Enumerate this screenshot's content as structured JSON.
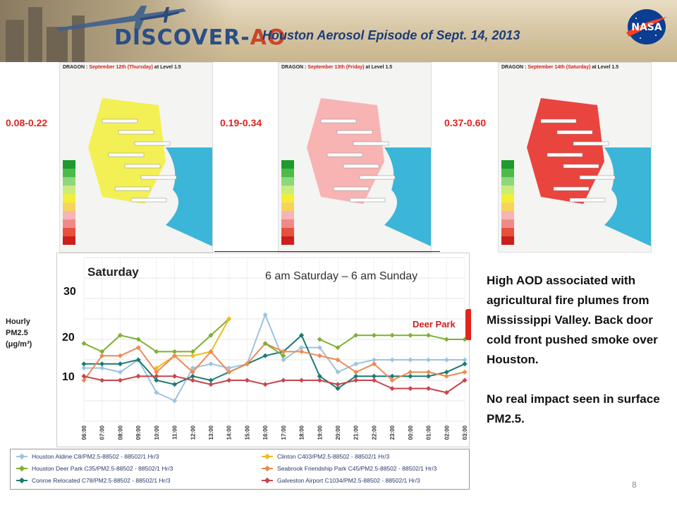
{
  "header": {
    "logo_main": "DISCOVER-",
    "logo_accent": "AO",
    "title": "Houston Aerosol Episode of Sept. 14, 2013",
    "nasa_label": "NASA"
  },
  "maps": [
    {
      "title_prefix": "DRAGON : ",
      "title_date": "September 12th (Thursday)",
      "title_suffix": " at Level 1.5",
      "range": "0.08-0.22",
      "fill": "#f2ee3a"
    },
    {
      "title_prefix": "DRAGON : ",
      "title_date": "September 13th (Friday)",
      "title_suffix": " at Level 1.5",
      "range": "0.19-0.34",
      "fill": "#f7a8a8"
    },
    {
      "title_prefix": "DRAGON : ",
      "title_date": "September 14th (Saturday)",
      "title_suffix": " at Level 1.5",
      "range": "0.37-0.60",
      "fill": "#e8241e"
    }
  ],
  "chart_labels": {
    "hourly_line1": "Hourly",
    "hourly_line2": "PM2.5",
    "hourly_line3": "(μg/m³)",
    "title": "Saturday",
    "subtitle": "6 am Saturday – 6 am Sunday",
    "annotation": "Deer Park"
  },
  "chart_data": {
    "type": "line",
    "title": "Saturday",
    "subtitle": "6 am Saturday – 6 am Sunday",
    "xlabel": "",
    "ylabel": "Hourly PM2.5 (μg/m³)",
    "y_ticks": [
      10,
      20,
      30
    ],
    "ylim": [
      0,
      40
    ],
    "x": [
      "06:00",
      "07:00",
      "08:00",
      "09:00",
      "10:00",
      "11:00",
      "12:00",
      "13:00",
      "14:00",
      "15:00",
      "16:00",
      "17:00",
      "18:00",
      "19:00",
      "20:00",
      "21:00",
      "22:00",
      "23:00",
      "00:00",
      "01:00",
      "02:00",
      "03:00"
    ],
    "series": [
      {
        "name": "Houston Aldine C8/PM2.5-88502 - 88502/1 Hr/3",
        "color": "#9ec3de",
        "values": [
          13,
          13,
          12,
          15,
          7,
          5,
          13,
          14,
          13,
          14,
          26,
          15,
          18,
          18,
          12,
          14,
          15,
          15,
          15,
          15,
          15,
          15
        ]
      },
      {
        "name": "Houston Deer Park C35/PM2.5-88502 - 88502/1 Hr/3",
        "color": "#7fb032",
        "values": [
          19,
          17,
          21,
          20,
          17,
          17,
          17,
          21,
          25,
          null,
          null,
          null,
          null,
          null,
          null,
          null,
          null,
          null,
          null,
          null,
          null,
          null
        ]
      },
      {
        "name": "Conroe Relocated C78/PM2.5-88502 - 88502/1 Hr/3",
        "color": "#1c7b73",
        "values": [
          14,
          14,
          14,
          15,
          10,
          9,
          11,
          10,
          12,
          14,
          16,
          17,
          21,
          11,
          8,
          11,
          11,
          11,
          11,
          11,
          12,
          14
        ]
      },
      {
        "name": "Clinton C403/PM2.5-88502 - 88502/1 Hr/3",
        "color": "#f0bb1e",
        "values": [
          null,
          null,
          null,
          null,
          13,
          16,
          16,
          17,
          25,
          null,
          null,
          null,
          null,
          null,
          null,
          null,
          null,
          null,
          null,
          null,
          null,
          null
        ]
      },
      {
        "name": "Seabrook Friendship Park C45/PM2.5-88502 - 88502/1 Hr/3",
        "color": "#ee8a52",
        "values": [
          10,
          16,
          16,
          18,
          12,
          16,
          12,
          17,
          12,
          14,
          19,
          17,
          17,
          16,
          15,
          12,
          14,
          10,
          12,
          12,
          11,
          12
        ]
      },
      {
        "name": "Galveston Airport C1034/PM2.5-88502 - 88502/1 Hr/3",
        "color": "#c8454b",
        "values": [
          11,
          10,
          10,
          11,
          11,
          11,
          10,
          9,
          10,
          10,
          9,
          10,
          10,
          10,
          9,
          10,
          10,
          8,
          8,
          8,
          7,
          10
        ]
      },
      {
        "name": "",
        "color": "#7fb032",
        "values": [
          null,
          null,
          null,
          null,
          null,
          null,
          null,
          null,
          null,
          null,
          19,
          16,
          null,
          20,
          18,
          21,
          21,
          21,
          21,
          21,
          20,
          20
        ]
      }
    ]
  },
  "notes": {
    "line1": "High AOD associated with agricultural fire plumes from Mississippi Valley. Back door cold front pushed smoke over Houston.",
    "line2": "No real impact seen in surface PM2.5."
  },
  "legend": [
    {
      "label": "Houston Aldine C8/PM2.5-88502 - 88502/1 Hr/3",
      "color": "#9ec3de"
    },
    {
      "label": "Clinton C403/PM2.5-88502 - 88502/1 Hr/3",
      "color": "#f0bb1e"
    },
    {
      "label": "Houston Deer Park C35/PM2.5-88502 - 88502/1 Hr/3",
      "color": "#7fb032"
    },
    {
      "label": "Seabrook Friendship Park C45/PM2.5-88502 - 88502/1 Hr/3",
      "color": "#ee8a52"
    },
    {
      "label": "Conroe Relocated C78/PM2.5-88502 - 88502/1 Hr/3",
      "color": "#1c7b73"
    },
    {
      "label": "Galveston Airport C1034/PM2.5-88502 - 88502/1 Hr/3",
      "color": "#c8454b"
    }
  ],
  "page_number": "8"
}
